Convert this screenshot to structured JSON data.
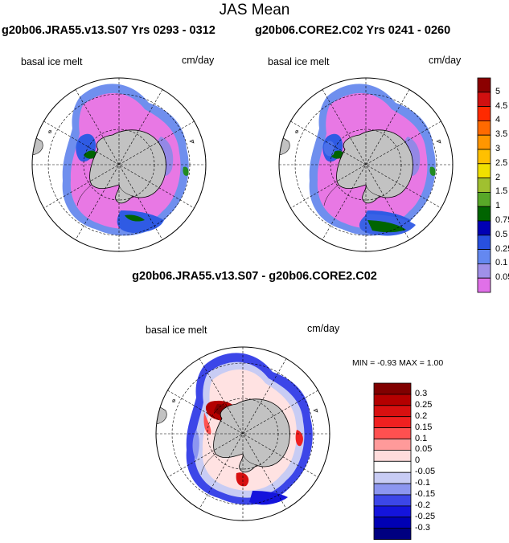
{
  "title": "JAS Mean",
  "panels": [
    {
      "title": "g20b06.JRA55.v13.S07  Yrs 0293 - 0312",
      "variable": "basal ice melt",
      "units": "cm/day"
    },
    {
      "title": "g20b06.CORE2.C02  Yrs 0241 - 0260",
      "variable": "basal ice melt",
      "units": "cm/day"
    },
    {
      "title": "g20b06.JRA55.v13.S07 - g20b06.CORE2.C02",
      "variable": "basal ice melt",
      "units": "cm/day",
      "stats": "MIN =  -0.93 MAX =   1.00"
    }
  ],
  "colorbar_top": {
    "labels": [
      "5",
      "4.5",
      "4",
      "3.5",
      "3",
      "2.5",
      "2",
      "1.5",
      "1",
      "0.75",
      "0.5",
      "0.25",
      "0.1",
      "0.05"
    ],
    "colors": [
      "#8b0000",
      "#d01010",
      "#ff2a00",
      "#ff6a00",
      "#ff9600",
      "#ffc000",
      "#f0e000",
      "#a0c030",
      "#58a828",
      "#006400",
      "#0000b4",
      "#2850e0",
      "#6488f0",
      "#a090e8",
      "#e070e8"
    ]
  },
  "colorbar_diff": {
    "labels": [
      "0.3",
      "0.25",
      "0.2",
      "0.15",
      "0.1",
      "0.05",
      "0",
      "-0.05",
      "-0.1",
      "-0.15",
      "-0.2",
      "-0.25",
      "-0.3"
    ],
    "colors": [
      "#800000",
      "#b40000",
      "#d81010",
      "#f02020",
      "#ff5050",
      "#ff9a9a",
      "#ffdcdc",
      "#ffffff",
      "#c8ccf4",
      "#8c96f0",
      "#3c46e8",
      "#1414dc",
      "#0000b4",
      "#000080"
    ]
  }
}
